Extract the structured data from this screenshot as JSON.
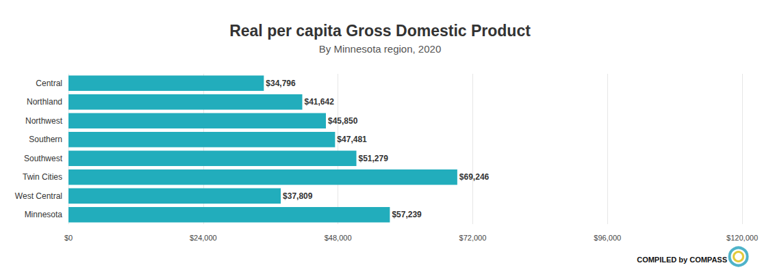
{
  "chart_data": {
    "type": "bar",
    "title": "Real per capita Gross Domestic Product",
    "subtitle": "By Minnesota region, 2020",
    "orientation": "horizontal",
    "categories": [
      "Central",
      "Northland",
      "Northwest",
      "Southern",
      "Southwest",
      "Twin Cities",
      "West Central",
      "Minnesota"
    ],
    "values": [
      34796,
      41642,
      45850,
      47481,
      51279,
      69246,
      37809,
      57239
    ],
    "value_labels": [
      "$34,796",
      "$41,642",
      "$45,850",
      "$47,481",
      "$51,279",
      "$69,246",
      "$37,809",
      "$57,239"
    ],
    "data_labels": true,
    "color": "#22adbc",
    "xlim": [
      0,
      120000
    ],
    "xticks": [
      {
        "value": 0,
        "label": "$0"
      },
      {
        "value": 24000,
        "label": "$24,000"
      },
      {
        "value": 48000,
        "label": "$48,000"
      },
      {
        "value": 72000,
        "label": "$72,000"
      },
      {
        "value": 96000,
        "label": "$96,000"
      },
      {
        "value": 120000,
        "label": "$120,000"
      }
    ],
    "grid": true,
    "annotations": [
      "COMPILED by COMPASS"
    ]
  }
}
